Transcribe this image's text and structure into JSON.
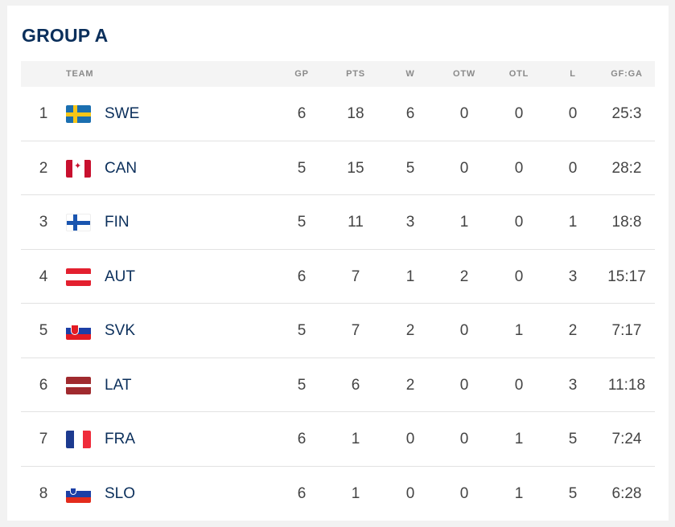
{
  "title": "GROUP A",
  "columns": {
    "team": "TEAM",
    "gp": "GP",
    "pts": "PTS",
    "w": "W",
    "otw": "OTW",
    "otl": "OTL",
    "l": "L",
    "gfga": "GF:GA"
  },
  "rows": [
    {
      "rank": "1",
      "team": "SWE",
      "flag": "swe",
      "gp": "6",
      "pts": "18",
      "w": "6",
      "otw": "0",
      "otl": "0",
      "l": "0",
      "gfga": "25:3"
    },
    {
      "rank": "2",
      "team": "CAN",
      "flag": "can",
      "gp": "5",
      "pts": "15",
      "w": "5",
      "otw": "0",
      "otl": "0",
      "l": "0",
      "gfga": "28:2"
    },
    {
      "rank": "3",
      "team": "FIN",
      "flag": "fin",
      "gp": "5",
      "pts": "11",
      "w": "3",
      "otw": "1",
      "otl": "0",
      "l": "1",
      "gfga": "18:8"
    },
    {
      "rank": "4",
      "team": "AUT",
      "flag": "aut",
      "gp": "6",
      "pts": "7",
      "w": "1",
      "otw": "2",
      "otl": "0",
      "l": "3",
      "gfga": "15:17"
    },
    {
      "rank": "5",
      "team": "SVK",
      "flag": "svk",
      "gp": "5",
      "pts": "7",
      "w": "2",
      "otw": "0",
      "otl": "1",
      "l": "2",
      "gfga": "7:17"
    },
    {
      "rank": "6",
      "team": "LAT",
      "flag": "lat",
      "gp": "5",
      "pts": "6",
      "w": "2",
      "otw": "0",
      "otl": "0",
      "l": "3",
      "gfga": "11:18"
    },
    {
      "rank": "7",
      "team": "FRA",
      "flag": "fra",
      "gp": "6",
      "pts": "1",
      "w": "0",
      "otw": "0",
      "otl": "1",
      "l": "5",
      "gfga": "7:24"
    },
    {
      "rank": "8",
      "team": "SLO",
      "flag": "slo",
      "gp": "6",
      "pts": "1",
      "w": "0",
      "otw": "0",
      "otl": "1",
      "l": "5",
      "gfga": "6:28"
    }
  ]
}
